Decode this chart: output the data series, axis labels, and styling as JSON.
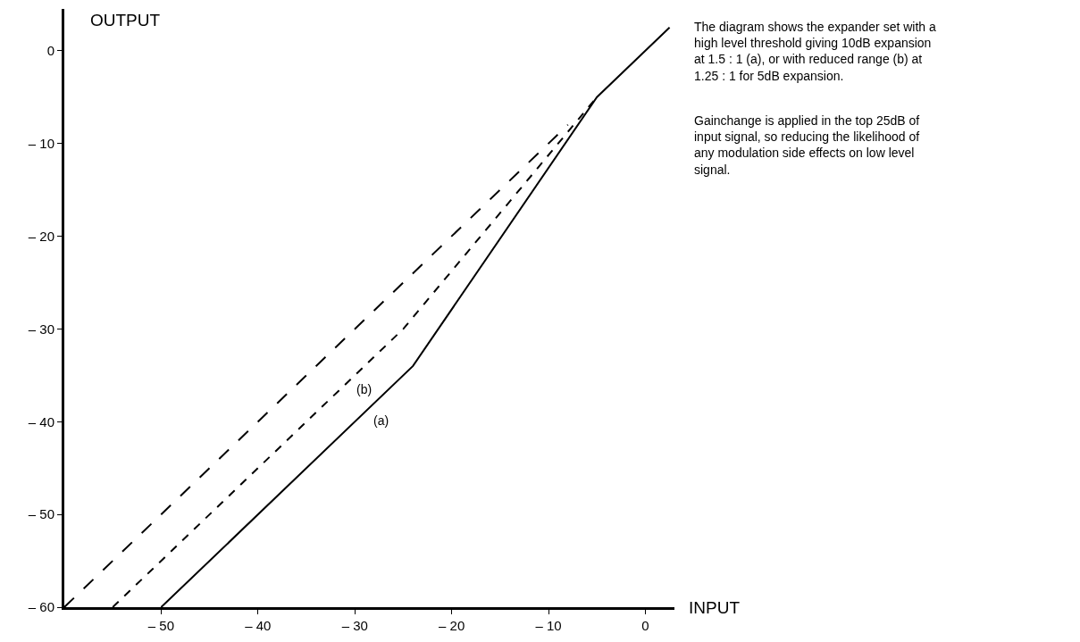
{
  "chart_data": {
    "type": "line",
    "xlabel": "INPUT",
    "ylabel": "OUTPUT",
    "xlim": [
      -60,
      3
    ],
    "ylim": [
      -60,
      4.5
    ],
    "xticks": [
      {
        "value": -50,
        "label": "– 50"
      },
      {
        "value": -40,
        "label": "– 40"
      },
      {
        "value": -30,
        "label": "– 30"
      },
      {
        "value": -20,
        "label": "– 20"
      },
      {
        "value": -10,
        "label": "– 10"
      },
      0
    ],
    "yticks": [
      {
        "value": -60,
        "label": "– 60"
      },
      {
        "value": -50,
        "label": "– 50"
      },
      {
        "value": -40,
        "label": "– 40"
      },
      {
        "value": -30,
        "label": "– 30"
      },
      {
        "value": -20,
        "label": "– 20"
      },
      {
        "value": -10,
        "label": "– 10"
      },
      0
    ],
    "legend": false,
    "marker": "none",
    "series": [
      {
        "color": "#000000",
        "line_style": "dashed",
        "x": [
          -60,
          -8
        ],
        "values": [
          -60,
          -8
        ]
      },
      {
        "name": "(b)",
        "color": "#000000",
        "line_style": "dotted",
        "x": [
          -55,
          -25,
          -5
        ],
        "values": [
          -60,
          -30,
          -5
        ]
      },
      {
        "name": "(a)",
        "color": "#000000",
        "line_style": "solid",
        "x": [
          -50,
          -24,
          -5,
          2.5
        ],
        "values": [
          -60,
          -34,
          -5,
          2.5
        ]
      }
    ],
    "annotations": [
      "The diagram shows the expander set with a\nhigh level threshold giving 10dB expansion\nat 1.5 : 1 (a), or with reduced range (b) at\n1.25 : 1 for 5dB expansion.",
      "Gainchange is applied in the top 25dB of\ninput signal, so reducing the likelihood of\nany modulation side effects on low level\nsignal."
    ]
  }
}
